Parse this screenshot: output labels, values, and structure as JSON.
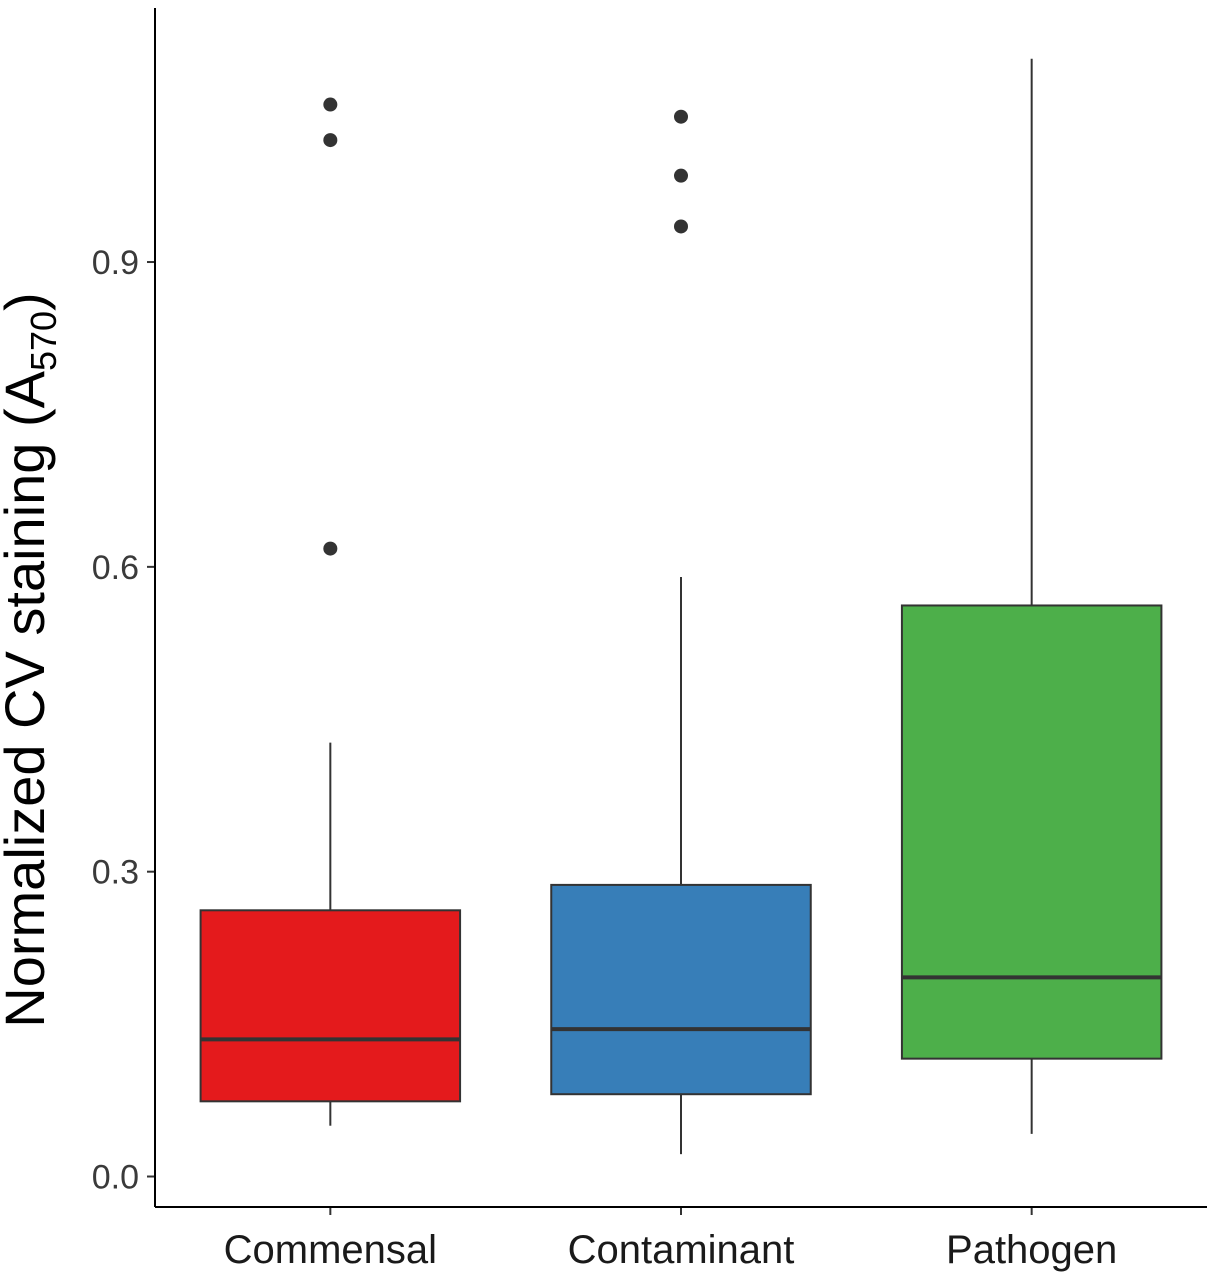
{
  "chart_data": {
    "type": "box",
    "title": "",
    "xlabel": "",
    "ylabel": {
      "main": "Normalized CV staining (A",
      "subscript": "570",
      "suffix": ")"
    },
    "ylim": [
      -0.03,
      1.15
    ],
    "yticks": [
      {
        "value": 0.0,
        "label": "0.0"
      },
      {
        "value": 0.3,
        "label": "0.3"
      },
      {
        "value": 0.6,
        "label": "0.6"
      },
      {
        "value": 0.9,
        "label": "0.9"
      }
    ],
    "grid": false,
    "legend": "none",
    "categories": [
      "Commensal",
      "Contaminant",
      "Pathogen"
    ],
    "boxes": [
      {
        "name": "Commensal",
        "color": "#E41A1C",
        "whisker_low": 0.05,
        "q1": 0.074,
        "median": 0.135,
        "q3": 0.262,
        "whisker_high": 0.427,
        "outliers": [
          0.618,
          1.02,
          1.055
        ]
      },
      {
        "name": "Contaminant",
        "color": "#377EB8",
        "whisker_low": 0.022,
        "q1": 0.081,
        "median": 0.145,
        "q3": 0.287,
        "whisker_high": 0.59,
        "outliers": [
          0.935,
          0.985,
          1.043
        ]
      },
      {
        "name": "Pathogen",
        "color": "#4DAF4A",
        "whisker_low": 0.042,
        "q1": 0.116,
        "median": 0.196,
        "q3": 0.562,
        "whisker_high": 1.1,
        "outliers": []
      }
    ]
  }
}
